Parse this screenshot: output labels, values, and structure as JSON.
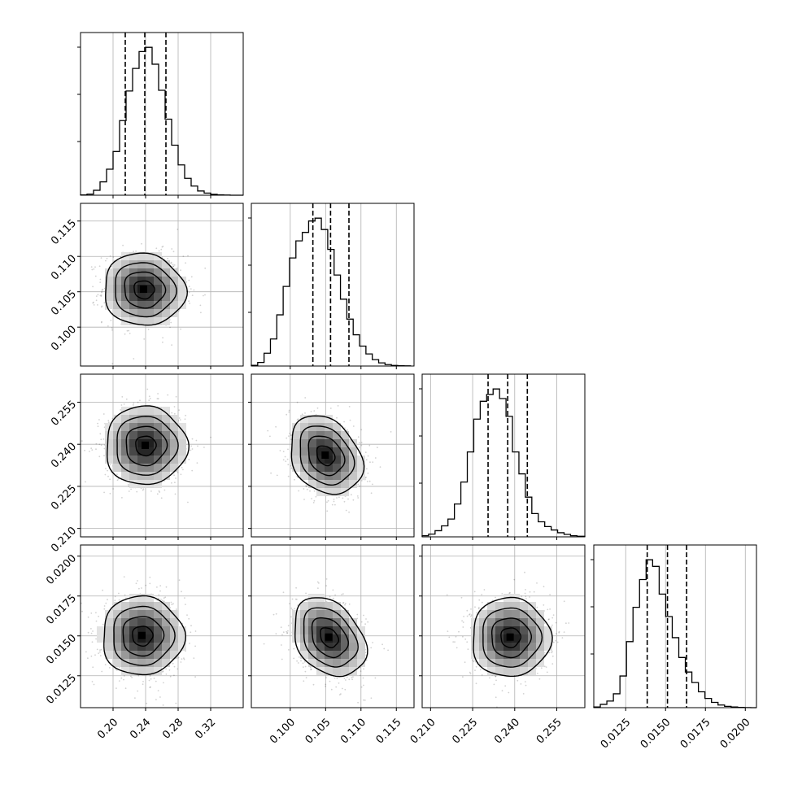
{
  "chart_data": {
    "type": "corner",
    "grid": true,
    "parameters": [
      {
        "range": [
          0.16,
          0.36
        ],
        "ticks": [
          0.2,
          0.24,
          0.28,
          0.32
        ],
        "tick_labels": [
          "0.20",
          "0.24",
          "0.28",
          "0.32"
        ],
        "quantiles": [
          0.215,
          0.239,
          0.265
        ],
        "hist": {
          "bin_edges": [
            0.16,
            0.168,
            0.176,
            0.184,
            0.192,
            0.2,
            0.208,
            0.216,
            0.224,
            0.232,
            0.24,
            0.248,
            0.256,
            0.264,
            0.272,
            0.28,
            0.288,
            0.296,
            0.304,
            0.312,
            0.32,
            0.328,
            0.336,
            0.344,
            0.352,
            0.36
          ],
          "counts": [
            2,
            8,
            35,
            95,
            185,
            310,
            530,
            740,
            900,
            1020,
            1050,
            930,
            745,
            540,
            355,
            215,
            120,
            65,
            30,
            15,
            6,
            3,
            1,
            0,
            0
          ]
        }
      },
      {
        "range": [
          0.0945,
          0.1175
        ],
        "ticks": [
          0.1,
          0.105,
          0.11,
          0.115
        ],
        "tick_labels": [
          "0.100",
          "0.105",
          "0.110",
          "0.115"
        ],
        "quantiles": [
          0.1032,
          0.1057,
          0.1083
        ],
        "hist": {
          "bin_edges": [
            0.0945,
            0.0954,
            0.0963,
            0.0972,
            0.0981,
            0.099,
            0.0999,
            0.1008,
            0.1017,
            0.1026,
            0.1035,
            0.1044,
            0.1053,
            0.1062,
            0.1071,
            0.108,
            0.1089,
            0.1098,
            0.1107,
            0.1116,
            0.1125,
            0.1134,
            0.1143,
            0.1152,
            0.1161,
            0.117
          ],
          "counts": [
            5,
            25,
            90,
            190,
            360,
            560,
            760,
            880,
            940,
            1020,
            1040,
            960,
            820,
            640,
            470,
            330,
            220,
            140,
            85,
            45,
            22,
            10,
            4,
            2,
            1
          ]
        }
      },
      {
        "range": [
          0.207,
          0.265
        ],
        "ticks": [
          0.21,
          0.225,
          0.24,
          0.255
        ],
        "tick_labels": [
          "0.210",
          "0.225",
          "0.240",
          "0.255"
        ],
        "quantiles": [
          0.2305,
          0.2375,
          0.2445
        ],
        "hist": {
          "bin_edges": [
            0.207,
            0.2093,
            0.2116,
            0.2139,
            0.2162,
            0.2185,
            0.2208,
            0.2231,
            0.2254,
            0.2277,
            0.23,
            0.2323,
            0.2346,
            0.2369,
            0.2392,
            0.2415,
            0.2438,
            0.2461,
            0.2484,
            0.2507,
            0.253,
            0.2553,
            0.2576,
            0.2599,
            0.2622,
            0.265
          ],
          "counts": [
            8,
            20,
            45,
            80,
            130,
            240,
            400,
            620,
            860,
            990,
            1040,
            1080,
            1010,
            880,
            620,
            460,
            290,
            170,
            110,
            75,
            50,
            30,
            18,
            8,
            4
          ]
        }
      },
      {
        "range": [
          0.0105,
          0.0207
        ],
        "ticks": [
          0.0125,
          0.015,
          0.0175,
          0.02
        ],
        "tick_labels": [
          "0.0125",
          "0.0150",
          "0.0175",
          "0.0200"
        ],
        "quantiles": [
          0.01385,
          0.01512,
          0.01632
        ],
        "hist": {
          "bin_edges": [
            0.0105,
            0.01091,
            0.01132,
            0.01173,
            0.01214,
            0.01255,
            0.01296,
            0.01337,
            0.01378,
            0.01419,
            0.0146,
            0.01501,
            0.01542,
            0.01583,
            0.01624,
            0.01665,
            0.01706,
            0.01747,
            0.01788,
            0.01829,
            0.0187,
            0.01911,
            0.01952,
            0.01993,
            0.02034,
            0.0207
          ],
          "counts": [
            5,
            25,
            50,
            105,
            240,
            500,
            760,
            970,
            1120,
            1070,
            860,
            690,
            530,
            380,
            270,
            190,
            120,
            70,
            40,
            20,
            10,
            5,
            2,
            1,
            0
          ]
        }
      }
    ],
    "pairs": [
      {
        "x": 0,
        "y": 1,
        "rho": -0.05,
        "peak": [
          0.238,
          0.1053
        ]
      },
      {
        "x": 0,
        "y": 2,
        "rho": 0.0,
        "peak": [
          0.24,
          0.2395
        ]
      },
      {
        "x": 1,
        "y": 2,
        "rho": -0.25,
        "peak": [
          0.105,
          0.236
        ]
      },
      {
        "x": 0,
        "y": 3,
        "rho": 0.0,
        "peak": [
          0.236,
          0.015
        ]
      },
      {
        "x": 1,
        "y": 3,
        "rho": -0.3,
        "peak": [
          0.1055,
          0.0149
        ]
      },
      {
        "x": 2,
        "y": 3,
        "rho": 0.0,
        "peak": [
          0.2385,
          0.0149
        ]
      }
    ],
    "contour_sigma_levels": [
      0.5,
      1.0,
      1.5,
      2.0
    ]
  }
}
